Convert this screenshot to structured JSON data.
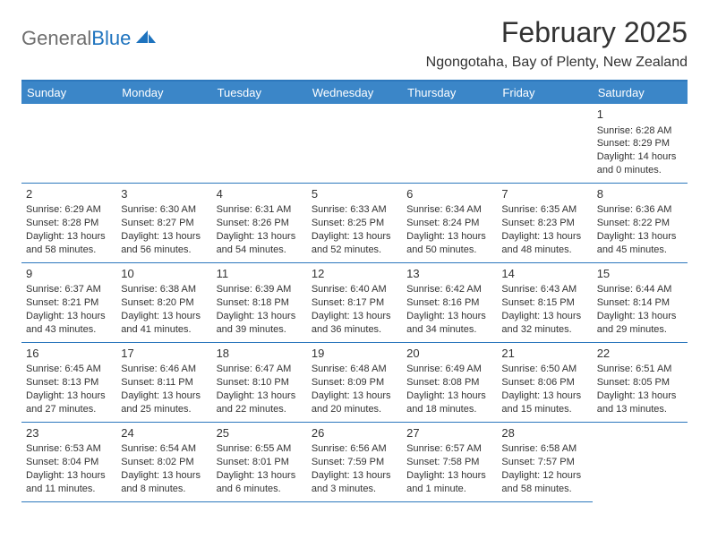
{
  "logo": {
    "text_general": "General",
    "text_blue": "Blue"
  },
  "header": {
    "title": "February 2025",
    "subtitle": "Ngongotaha, Bay of Plenty, New Zealand"
  },
  "colors": {
    "header_blue": "#3b86c8",
    "rule_blue": "#2d78bd",
    "logo_blue": "#1e73be",
    "logo_grey": "#6e6e6e",
    "text": "#333333",
    "bg": "#ffffff"
  },
  "weekdays": [
    "Sunday",
    "Monday",
    "Tuesday",
    "Wednesday",
    "Thursday",
    "Friday",
    "Saturday"
  ],
  "leading_blanks": 6,
  "days": [
    {
      "n": 1,
      "sunrise": "6:28 AM",
      "sunset": "8:29 PM",
      "daylight": "14 hours and 0 minutes."
    },
    {
      "n": 2,
      "sunrise": "6:29 AM",
      "sunset": "8:28 PM",
      "daylight": "13 hours and 58 minutes."
    },
    {
      "n": 3,
      "sunrise": "6:30 AM",
      "sunset": "8:27 PM",
      "daylight": "13 hours and 56 minutes."
    },
    {
      "n": 4,
      "sunrise": "6:31 AM",
      "sunset": "8:26 PM",
      "daylight": "13 hours and 54 minutes."
    },
    {
      "n": 5,
      "sunrise": "6:33 AM",
      "sunset": "8:25 PM",
      "daylight": "13 hours and 52 minutes."
    },
    {
      "n": 6,
      "sunrise": "6:34 AM",
      "sunset": "8:24 PM",
      "daylight": "13 hours and 50 minutes."
    },
    {
      "n": 7,
      "sunrise": "6:35 AM",
      "sunset": "8:23 PM",
      "daylight": "13 hours and 48 minutes."
    },
    {
      "n": 8,
      "sunrise": "6:36 AM",
      "sunset": "8:22 PM",
      "daylight": "13 hours and 45 minutes."
    },
    {
      "n": 9,
      "sunrise": "6:37 AM",
      "sunset": "8:21 PM",
      "daylight": "13 hours and 43 minutes."
    },
    {
      "n": 10,
      "sunrise": "6:38 AM",
      "sunset": "8:20 PM",
      "daylight": "13 hours and 41 minutes."
    },
    {
      "n": 11,
      "sunrise": "6:39 AM",
      "sunset": "8:18 PM",
      "daylight": "13 hours and 39 minutes."
    },
    {
      "n": 12,
      "sunrise": "6:40 AM",
      "sunset": "8:17 PM",
      "daylight": "13 hours and 36 minutes."
    },
    {
      "n": 13,
      "sunrise": "6:42 AM",
      "sunset": "8:16 PM",
      "daylight": "13 hours and 34 minutes."
    },
    {
      "n": 14,
      "sunrise": "6:43 AM",
      "sunset": "8:15 PM",
      "daylight": "13 hours and 32 minutes."
    },
    {
      "n": 15,
      "sunrise": "6:44 AM",
      "sunset": "8:14 PM",
      "daylight": "13 hours and 29 minutes."
    },
    {
      "n": 16,
      "sunrise": "6:45 AM",
      "sunset": "8:13 PM",
      "daylight": "13 hours and 27 minutes."
    },
    {
      "n": 17,
      "sunrise": "6:46 AM",
      "sunset": "8:11 PM",
      "daylight": "13 hours and 25 minutes."
    },
    {
      "n": 18,
      "sunrise": "6:47 AM",
      "sunset": "8:10 PM",
      "daylight": "13 hours and 22 minutes."
    },
    {
      "n": 19,
      "sunrise": "6:48 AM",
      "sunset": "8:09 PM",
      "daylight": "13 hours and 20 minutes."
    },
    {
      "n": 20,
      "sunrise": "6:49 AM",
      "sunset": "8:08 PM",
      "daylight": "13 hours and 18 minutes."
    },
    {
      "n": 21,
      "sunrise": "6:50 AM",
      "sunset": "8:06 PM",
      "daylight": "13 hours and 15 minutes."
    },
    {
      "n": 22,
      "sunrise": "6:51 AM",
      "sunset": "8:05 PM",
      "daylight": "13 hours and 13 minutes."
    },
    {
      "n": 23,
      "sunrise": "6:53 AM",
      "sunset": "8:04 PM",
      "daylight": "13 hours and 11 minutes."
    },
    {
      "n": 24,
      "sunrise": "6:54 AM",
      "sunset": "8:02 PM",
      "daylight": "13 hours and 8 minutes."
    },
    {
      "n": 25,
      "sunrise": "6:55 AM",
      "sunset": "8:01 PM",
      "daylight": "13 hours and 6 minutes."
    },
    {
      "n": 26,
      "sunrise": "6:56 AM",
      "sunset": "7:59 PM",
      "daylight": "13 hours and 3 minutes."
    },
    {
      "n": 27,
      "sunrise": "6:57 AM",
      "sunset": "7:58 PM",
      "daylight": "13 hours and 1 minute."
    },
    {
      "n": 28,
      "sunrise": "6:58 AM",
      "sunset": "7:57 PM",
      "daylight": "12 hours and 58 minutes."
    }
  ],
  "labels": {
    "sunrise_prefix": "Sunrise: ",
    "sunset_prefix": "Sunset: ",
    "daylight_prefix": "Daylight: "
  }
}
